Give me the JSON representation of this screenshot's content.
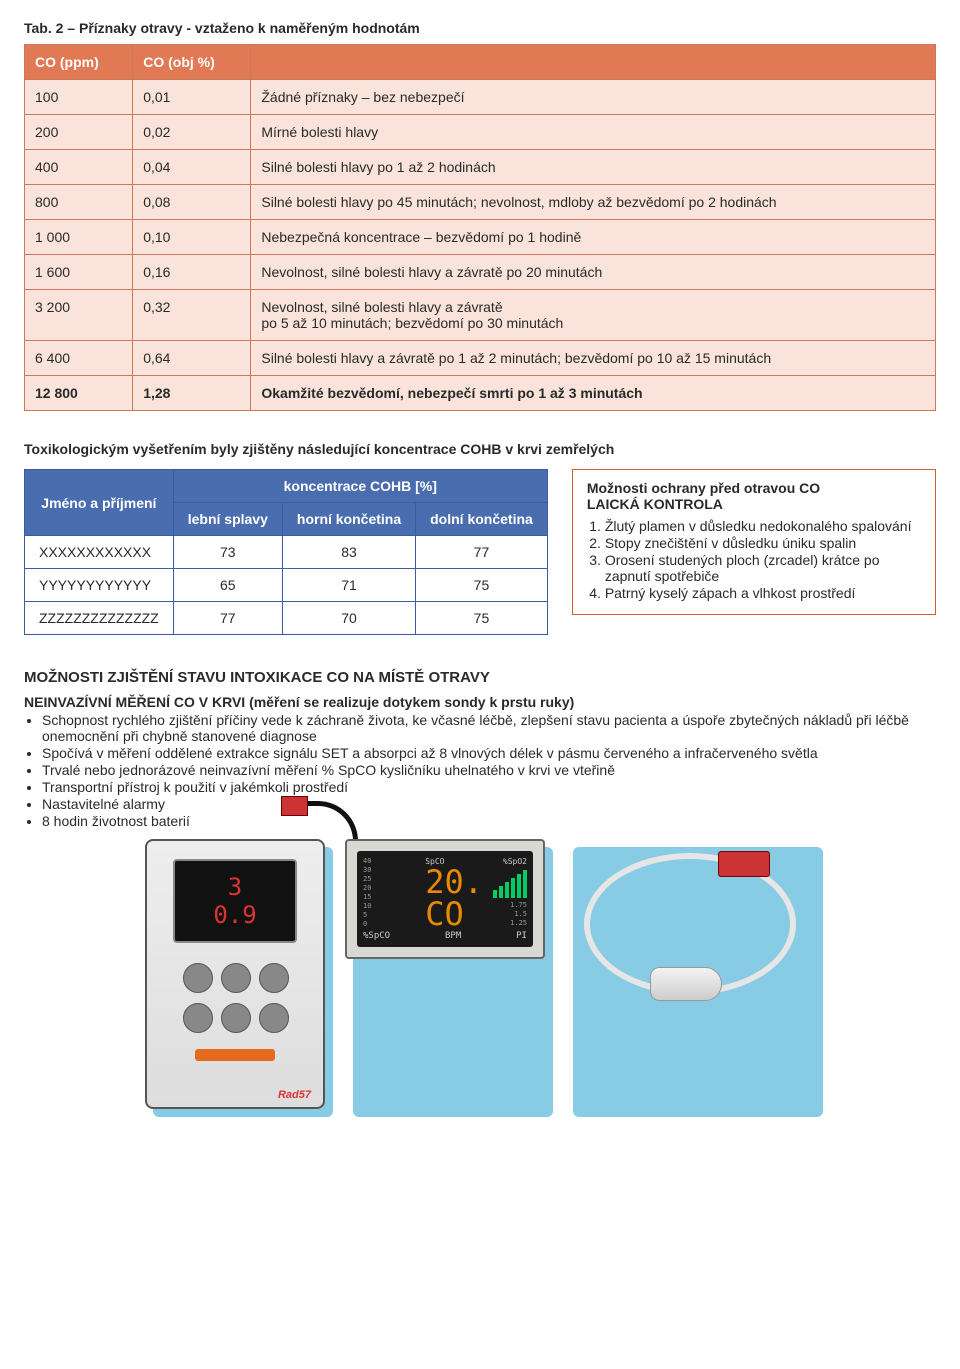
{
  "tab2": {
    "title": "Tab. 2 – Příznaky otravy - vztaženo k naměřeným hodnotám",
    "headers": {
      "col1": "CO (ppm)",
      "col2": "CO (obj %)",
      "col3": ""
    },
    "rows": [
      {
        "c1": "100",
        "c2": "0,01",
        "c3": "Žádné příznaky – bez nebezpečí"
      },
      {
        "c1": "200",
        "c2": "0,02",
        "c3": "Mírné bolesti hlavy"
      },
      {
        "c1": "400",
        "c2": "0,04",
        "c3": "Silné bolesti hlavy po 1 až 2 hodinách"
      },
      {
        "c1": "800",
        "c2": "0,08",
        "c3": "Silné bolesti hlavy po 45 minutách; nevolnost, mdloby až bezvědomí po 2 hodinách"
      },
      {
        "c1": "1 000",
        "c2": "0,10",
        "c3": "Nebezpečná koncentrace – bezvědomí po 1 hodině"
      },
      {
        "c1": "1 600",
        "c2": "0,16",
        "c3": "Nevolnost, silné bolesti hlavy a závratě  po 20 minutách"
      },
      {
        "c1": "3 200",
        "c2": "0,32",
        "c3": "Nevolnost, silné bolesti hlavy a závratě\npo 5 až 10 minutách; bezvědomí po 30 minutách"
      },
      {
        "c1": "6 400",
        "c2": "0,64",
        "c3": "Silné bolesti hlavy a závratě po 1 až 2 minutách; bezvědomí po 10 až 15 minutách"
      },
      {
        "c1": "12 800",
        "c2": "1,28",
        "c3": "Okamžité bezvědomí, nebezpečí smrti po 1 až 3 minutách"
      }
    ]
  },
  "cohb": {
    "heading": "Toxikologickým vyšetřením byly zjištěny následující koncentrace COHB v krvi zemřelých",
    "header_name": "Jméno a příjmení",
    "header_group": "koncentrace COHB [%]",
    "cols": {
      "c1": "lební splavy",
      "c2": "horní končetina",
      "c3": "dolní končetina"
    },
    "rows": [
      {
        "n": "XXXXXXXXXXXX",
        "a": "73",
        "b": "83",
        "c": "77"
      },
      {
        "n": "YYYYYYYYYYYY",
        "a": "65",
        "b": "71",
        "c": "75"
      },
      {
        "n": "ZZZZZZZZZZZZZZ",
        "a": "77",
        "b": "70",
        "c": "75"
      }
    ]
  },
  "protection": {
    "title1": "Možnosti ochrany před otravou CO",
    "title2": "LAICKÁ KONTROLA",
    "items": [
      "Žlutý plamen v důsledku nedokonalého spalování",
      "Stopy znečištění v důsledku úniku spalin",
      "Orosení studených ploch (zrcadel) krátce po zapnutí spotřebiče",
      "Patrný kyselý zápach a vlhkost prostředí"
    ]
  },
  "detection": {
    "heading": "MOŽNOSTI ZJIŠTĚNÍ STAVU INTOXIKACE CO NA MÍSTĚ OTRAVY",
    "sub": "NEINVAZÍVNÍ MĚŘENÍ CO V KRVI (měření se realizuje dotykem sondy k prstu ruky)",
    "bullets": [
      "Schopnost rychlého zjištění příčiny vede k záchraně života, ke včasné léčbě, zlepšení stavu pacienta a úspoře zbytečných nákladů při léčbě onemocnění při chybně stanovené diagnose",
      "Spočívá v měření oddělené extrakce signálu SET a absorpci až 8 vlnových délek v pásmu červeného a infračerveného světla",
      "Trvalé nebo jednorázové neinvazívní měření % SpCO kysličníku uhelnatého v krvi ve vteřině",
      "Transportní přístroj k použití v jakémkoli prostředí",
      "Nastavitelné alarmy",
      "8 hodin životnost baterií"
    ]
  },
  "devices": {
    "handheld": {
      "reading1": "3",
      "reading2": "0.9",
      "brand": "Rad57"
    },
    "monitor": {
      "spco_label": "SpCO",
      "big_spco": "20.",
      "spo2_label": "%SpO2",
      "co_text": "CO",
      "scale": [
        "40",
        "30",
        "25",
        "20",
        "15",
        "10",
        "5",
        "0"
      ],
      "bpm_label": "BPM",
      "pi_label": "PI",
      "pi_vals": [
        "1.75",
        "1.5",
        "1.25"
      ],
      "spco_pct": "%SpCO"
    }
  }
}
